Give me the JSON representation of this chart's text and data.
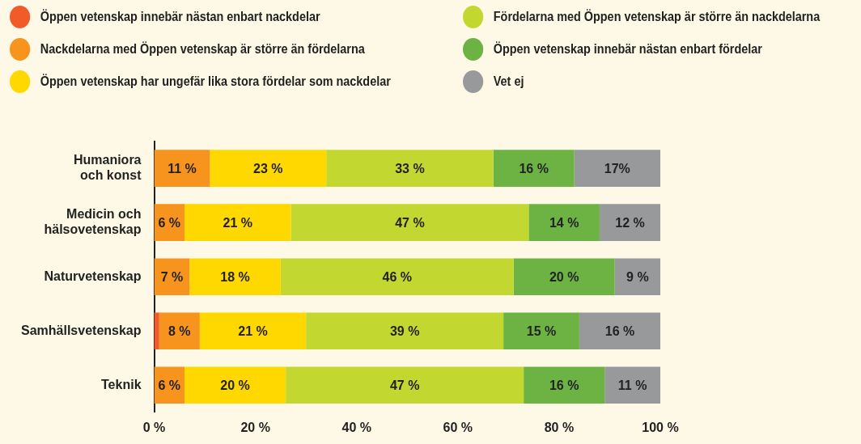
{
  "chart_data": {
    "type": "bar",
    "orientation": "horizontal",
    "stacked": true,
    "legend": "top",
    "grid": false,
    "categories": [
      "Humaniora och konst",
      "Medicin och hälsovetenskap",
      "Naturvetenskap",
      "Samhällsvetenskap",
      "Teknik"
    ],
    "xlim": [
      0,
      100
    ],
    "xticks": [
      {
        "value": 0,
        "label": "0 %"
      },
      {
        "value": 20,
        "label": "20 %"
      },
      {
        "value": 40,
        "label": "40 %"
      },
      {
        "value": 60,
        "label": "60 %"
      },
      {
        "value": 80,
        "label": "80 %"
      },
      {
        "value": 100,
        "label": "100 %"
      }
    ],
    "series": [
      {
        "name": "Öppen vetenskap innebär nästan enbart nackdelar",
        "color": "#f15a29",
        "values": [
          0,
          0,
          0,
          1,
          0
        ],
        "value_labels": [
          null,
          null,
          null,
          null,
          null
        ]
      },
      {
        "name": "Nackdelarna med Öppen vetenskap är större än fördelarna",
        "color": "#f7941d",
        "values": [
          11,
          6,
          7,
          8,
          6
        ],
        "value_labels": [
          "11 %",
          "6 %",
          "7 %",
          "8 %",
          "6 %"
        ]
      },
      {
        "name": "Öppen vetenskap har ungefär lika stora fördelar som nackdelar",
        "color": "#ffd800",
        "values": [
          23,
          21,
          18,
          21,
          20
        ],
        "value_labels": [
          "23 %",
          "21 %",
          "18 %",
          "21 %",
          "20 %"
        ]
      },
      {
        "name": "Fördelarna med Öppen vetenskap är större än nackdelarna",
        "color": "#c2d830",
        "values": [
          33,
          47,
          46,
          39,
          47
        ],
        "value_labels": [
          "33 %",
          "47 %",
          "46 %",
          "39 %",
          "47 %"
        ]
      },
      {
        "name": "Öppen vetenskap innebär nästan enbart fördelar",
        "color": "#6cb344",
        "values": [
          16,
          14,
          20,
          15,
          16
        ],
        "value_labels": [
          "16 %",
          "14 %",
          "20 %",
          "15 %",
          "16 %"
        ]
      },
      {
        "name": "Vet ej",
        "color": "#97999b",
        "values": [
          17,
          12,
          9,
          16,
          11
        ],
        "value_labels": [
          "17%",
          "12 %",
          "9 %",
          "16 %",
          "11 %"
        ]
      }
    ]
  }
}
